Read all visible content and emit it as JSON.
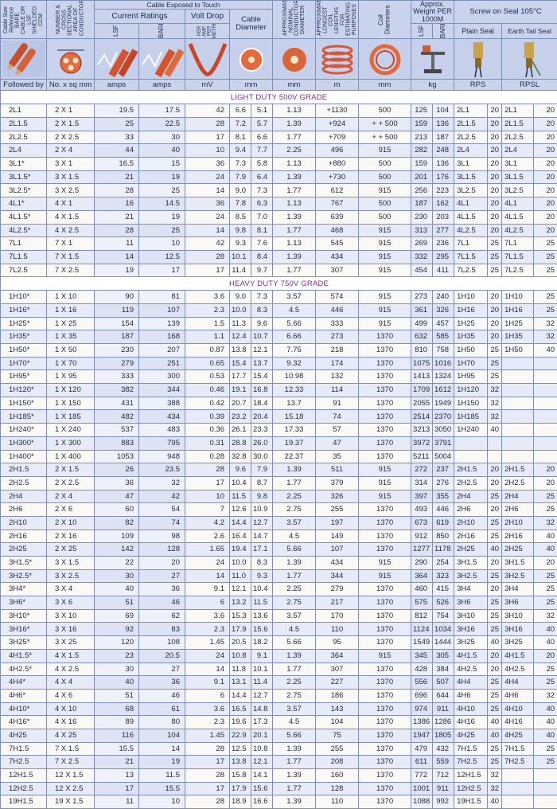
{
  "header": {
    "col1_vertical": "Cable Size Reference BARE CABLE OR LSF SHIELDED CCM",
    "col2_vertical": "NUMBER & CROSS SECTIONAL AREA OF CONDUCTORS",
    "group_exposed": "Cable Exposed to Touch",
    "group_current": "Current Ratings",
    "group_voltdrop": "Volt Drop",
    "voltdrop_vertical": "PER AMP PER METRE",
    "group_diameter": "Cable Diameter",
    "col_nominal_vertical": "APPROXIMATE NOMINAL CONDUCTOR DIAMETER",
    "col_longest_vertical": "APPROXIMATE LONGEST COIL LENGTHS FOR ESTIMATING PURPOSES",
    "col_coil_vertical": "Coil Diameters",
    "group_weight": "Approx. Weight PER 1000M",
    "group_seal": "Screw on Seal 105°C",
    "lsf": "LSF",
    "bare": "BARE",
    "plain_seal": "Plain Seal",
    "earth_tail_seal": "Earth Tail Seal"
  },
  "units": {
    "followed_by": "Followed by",
    "size": "No. x sq mm",
    "amps_lsf": "amps",
    "amps_bare": "amps",
    "volt": "mV",
    "dia": "mm",
    "nominal": "mm",
    "length": "m",
    "coil": "mm",
    "weight": "kg",
    "plain": "RPS",
    "earth": "RPSL"
  },
  "sections": {
    "light": "LIGHT DUTY 500V GRADE",
    "heavy": "HEAVY DUTY 750V GRADE"
  },
  "light_rows": [
    [
      "2L1",
      "2 X 1",
      "19.5",
      "17.5",
      "42",
      "6.6",
      "5.1",
      "1.13",
      "+1130",
      "500",
      "125",
      "104",
      "2L1",
      "20",
      "2L1",
      "20"
    ],
    [
      "2L1.5",
      "2 X 1.5",
      "25",
      "22.5",
      "28",
      "7.2",
      "5.7",
      "1.39",
      "+924",
      "+ + 500",
      "159",
      "136",
      "2L1.5",
      "20",
      "2L1.5",
      "20"
    ],
    [
      "2L2.5",
      "2 X 2.5",
      "33",
      "30",
      "17",
      "8.1",
      "6.6",
      "1.77",
      "+709",
      "+ + 500",
      "213",
      "187",
      "2L2.5",
      "20",
      "2L2.5",
      "20"
    ],
    [
      "2L4",
      "2 X 4",
      "44",
      "40",
      "10",
      "9.4",
      "7.7",
      "2.25",
      "496",
      "915",
      "282",
      "248",
      "2L4",
      "20",
      "2L4",
      "20"
    ],
    [
      "3L1*",
      "3 X 1",
      "16.5",
      "15",
      "36",
      "7.3",
      "5.8",
      "1.13",
      "+880",
      "500",
      "159",
      "136",
      "3L1",
      "20",
      "3L1",
      "20"
    ],
    [
      "3L1.5*",
      "3 X 1.5",
      "21",
      "19",
      "24",
      "7.9",
      "6.4",
      "1.39",
      "+730",
      "500",
      "201",
      "176",
      "3L1.5",
      "20",
      "3L1.5",
      "20"
    ],
    [
      "3L2.5*",
      "3 X 2.5",
      "28",
      "25",
      "14",
      "9.0",
      "7.3",
      "1.77",
      "612",
      "915",
      "256",
      "223",
      "3L2.5",
      "20",
      "3L2.5",
      "20"
    ],
    [
      "4L1*",
      "4 X 1",
      "16",
      "14.5",
      "36",
      "7.8",
      "6.3",
      "1.13",
      "767",
      "500",
      "187",
      "162",
      "4L1",
      "20",
      "4L1",
      "20"
    ],
    [
      "4L1.5*",
      "4 X 1.5",
      "21",
      "19",
      "24",
      "8.5",
      "7.0",
      "1.39",
      "639",
      "500",
      "230",
      "203",
      "4L1.5",
      "20",
      "4L1.5",
      "20"
    ],
    [
      "4L2.5*",
      "4 X 2.5",
      "28",
      "25",
      "14",
      "9.8",
      "8.1",
      "1.77",
      "468",
      "915",
      "313",
      "277",
      "4L2.5",
      "20",
      "4L2.5",
      "20"
    ],
    [
      "7L1",
      "7 X 1",
      "11",
      "10",
      "42",
      "9.3",
      "7.6",
      "1.13",
      "545",
      "915",
      "269",
      "236",
      "7L1",
      "25",
      "7L1",
      "25"
    ],
    [
      "7L1.5",
      "7 X 1.5",
      "14",
      "12.5",
      "28",
      "10.1",
      "8.4",
      "1.39",
      "434",
      "915",
      "332",
      "295",
      "7L1.5",
      "25",
      "7L1.5",
      "25"
    ],
    [
      "7L2.5",
      "7 X 2.5",
      "19",
      "17",
      "17",
      "11.4",
      "9.7",
      "1.77",
      "307",
      "915",
      "454",
      "411",
      "7L2.5",
      "25",
      "7L2.5",
      "25"
    ]
  ],
  "heavy_rows": [
    [
      "1H10*",
      "1 X 10",
      "90",
      "81",
      "3.6",
      "9.0",
      "7.3",
      "3.57",
      "574",
      "915",
      "273",
      "240",
      "1H10",
      "20",
      "1H10",
      "25"
    ],
    [
      "1H16*",
      "1 X 16",
      "119",
      "107",
      "2.3",
      "10.0",
      "8.3",
      "4.5",
      "446",
      "915",
      "361",
      "326",
      "1H16",
      "20",
      "1H16",
      "25"
    ],
    [
      "1H25*",
      "1 X 25",
      "154",
      "139",
      "1.5",
      "11.3",
      "9.6",
      "5.66",
      "333",
      "915",
      "499",
      "457",
      "1H25",
      "20",
      "1H25",
      "32"
    ],
    [
      "1H35*",
      "1 X 35",
      "187",
      "168",
      "1.1",
      "12.4",
      "10.7",
      "6.66",
      "273",
      "1370",
      "632",
      "585",
      "1H35",
      "20",
      "1H35",
      "32"
    ],
    [
      "1H50*",
      "1 X 50",
      "230",
      "207",
      "0.87",
      "13.8",
      "12.1",
      "7.75",
      "218",
      "1370",
      "810",
      "758",
      "1H50",
      "25",
      "1H50",
      "40"
    ],
    [
      "1H70*",
      "1 X 70",
      "279",
      "251",
      "0.65",
      "15.4",
      "13.7",
      "9.32",
      "174",
      "1370",
      "1075",
      "1016",
      "1H70",
      "25",
      "",
      ""
    ],
    [
      "1H95*",
      "1 X 95",
      "333",
      "300",
      "0.53",
      "17.7",
      "15.4",
      "10.98",
      "132",
      "1370",
      "1413",
      "1324",
      "1H95",
      "25",
      "",
      ""
    ],
    [
      "1H120*",
      "1 X 120",
      "382",
      "344",
      "0.46",
      "19.1",
      "16.8",
      "12.33",
      "114",
      "1370",
      "1709",
      "1612",
      "1H120",
      "32",
      "",
      ""
    ],
    [
      "1H150*",
      "1 X 150",
      "431",
      "388",
      "0.42",
      "20.7",
      "18.4",
      "13.7",
      "91",
      "1370",
      "2055",
      "1949",
      "1H150",
      "32",
      "",
      ""
    ],
    [
      "1H185*",
      "1 X 185",
      "482",
      "434",
      "0.39",
      "23.2",
      "20.4",
      "15.18",
      "74",
      "1370",
      "2514",
      "2370",
      "1H185",
      "32",
      "",
      ""
    ],
    [
      "1H240*",
      "1 X 240",
      "537",
      "483",
      "0.36",
      "26.1",
      "23.3",
      "17.33",
      "57",
      "1370",
      "3213",
      "3050",
      "1H240",
      "40",
      "",
      ""
    ],
    [
      "1H300*",
      "1 X 300",
      "883",
      "795",
      "0.31",
      "28.8",
      "26.0",
      "19.37",
      "47",
      "1370",
      "3972",
      "3791",
      "",
      "",
      "",
      ""
    ],
    [
      "1H400*",
      "1 X 400",
      "1053",
      "948",
      "0.28",
      "32.8",
      "30.0",
      "22.37",
      "35",
      "1370",
      "5211",
      "5004",
      "",
      "",
      "",
      ""
    ],
    [
      "2H1.5",
      "2 X 1.5",
      "26",
      "23.5",
      "28",
      "9.6",
      "7.9",
      "1.39",
      "511",
      "915",
      "272",
      "237",
      "2H1.5",
      "20",
      "2H1.5",
      "20"
    ],
    [
      "2H2.5",
      "2 X 2.5",
      "36",
      "32",
      "17",
      "10.4",
      "8.7",
      "1.77",
      "379",
      "915",
      "314",
      "276",
      "2H2.5",
      "20",
      "2H2.5",
      "20"
    ],
    [
      "2H4",
      "2 X 4",
      "47",
      "42",
      "10",
      "11.5",
      "9.8",
      "2.25",
      "326",
      "915",
      "397",
      "355",
      "2H4",
      "25",
      "2H4",
      "25"
    ],
    [
      "2H6",
      "2 X 6",
      "60",
      "54",
      "7",
      "12.6",
      "10.9",
      "2.75",
      "255",
      "1370",
      "493",
      "446",
      "2H6",
      "20",
      "2H6",
      "25"
    ],
    [
      "2H10",
      "2 X 10",
      "82",
      "74",
      "4.2",
      "14.4",
      "12.7",
      "3.57",
      "197",
      "1370",
      "673",
      "619",
      "2H10",
      "25",
      "2H10",
      "32"
    ],
    [
      "2H16",
      "2 X 16",
      "109",
      "98",
      "2.6",
      "16.4",
      "14.7",
      "4.5",
      "149",
      "1370",
      "912",
      "850",
      "2H16",
      "25",
      "2H16",
      "40"
    ],
    [
      "2H25",
      "2 X 25",
      "142",
      "128",
      "1.65",
      "19.4",
      "17.1",
      "5.66",
      "107",
      "1370",
      "1277",
      "1178",
      "2H25",
      "40",
      "2H25",
      "40"
    ],
    [
      "3H1.5*",
      "3 X 1.5",
      "22",
      "20",
      "24",
      "10.0",
      "8.3",
      "1.39",
      "434",
      "915",
      "290",
      "254",
      "3H1.5",
      "20",
      "3H1.5",
      "20"
    ],
    [
      "3H2.5*",
      "3 X 2.5",
      "30",
      "27",
      "14",
      "11.0",
      "9.3",
      "1.77",
      "344",
      "915",
      "364",
      "323",
      "3H2.5",
      "25",
      "3H2.5",
      "25"
    ],
    [
      "3H4*",
      "3 X 4",
      "40",
      "36",
      "9.1",
      "12.1",
      "10.4",
      "2.25",
      "279",
      "1370",
      "460",
      "415",
      "3H4",
      "20",
      "3H4",
      "25"
    ],
    [
      "3H6*",
      "3 X 6",
      "51",
      "46",
      "6",
      "13.2",
      "11.5",
      "2.75",
      "217",
      "1370",
      "575",
      "526",
      "3H6",
      "25",
      "3H6",
      "25"
    ],
    [
      "3H10*",
      "3 X 10",
      "69",
      "62",
      "3.6",
      "15.3",
      "13.6",
      "3.57",
      "170",
      "1370",
      "812",
      "754",
      "3H10",
      "25",
      "3H10",
      "32"
    ],
    [
      "3H16*",
      "3 X 16",
      "92",
      "83",
      "2.3",
      "17.9",
      "15.6",
      "4.5",
      "110",
      "1370",
      "1124",
      "1034",
      "3H16",
      "25",
      "3H16",
      "40"
    ],
    [
      "3H25*",
      "3 X 25",
      "120",
      "108",
      "1.45",
      "20.5",
      "18.2",
      "5.66",
      "95",
      "1370",
      "1549",
      "1444",
      "3H25",
      "40",
      "3H25",
      "40"
    ],
    [
      "4H1.5*",
      "4 X 1.5",
      "23",
      "20.5",
      "24",
      "10.8",
      "9.1",
      "1.39",
      "364",
      "915",
      "345",
      "305",
      "4H1.5",
      "20",
      "4H1.5",
      "20"
    ],
    [
      "4H2.5*",
      "4 X 2.5",
      "30",
      "27",
      "14",
      "11.8",
      "10.1",
      "1.77",
      "307",
      "1370",
      "428",
      "384",
      "4H2.5",
      "20",
      "4H2.5",
      "25"
    ],
    [
      "4H4*",
      "4 X 4",
      "40",
      "36",
      "9.1",
      "13.1",
      "11.4",
      "2.25",
      "227",
      "1370",
      "556",
      "507",
      "4H4",
      "25",
      "4H4",
      "25"
    ],
    [
      "4H6*",
      "4 X 6",
      "51",
      "46",
      "6",
      "14.4",
      "12.7",
      "2.75",
      "186",
      "1370",
      "696",
      "644",
      "4H6",
      "25",
      "4H6",
      "32"
    ],
    [
      "4H10*",
      "4 X 10",
      "68",
      "61",
      "3.6",
      "16.5",
      "14.8",
      "3.57",
      "143",
      "1370",
      "974",
      "911",
      "4H10",
      "25",
      "4H10",
      "40"
    ],
    [
      "4H16*",
      "4 X 16",
      "89",
      "80",
      "2.3",
      "19.6",
      "17.3",
      "4.5",
      "104",
      "1370",
      "1386",
      "1286",
      "4H16",
      "40",
      "4H16",
      "40"
    ],
    [
      "4H25",
      "4 X 25",
      "116",
      "104",
      "1.45",
      "22.9",
      "20.1",
      "5.66",
      "75",
      "1370",
      "1947",
      "1805",
      "4H25",
      "40",
      "4H25",
      "40"
    ],
    [
      "7H1.5",
      "7 X 1.5",
      "15.5",
      "14",
      "28",
      "12.5",
      "10.8",
      "1.39",
      "255",
      "1370",
      "479",
      "432",
      "7H1.5",
      "25",
      "7H1.5",
      "25"
    ],
    [
      "7H2.5",
      "7 X 2.5",
      "21",
      "19",
      "17",
      "13.8",
      "12.1",
      "1.77",
      "208",
      "1370",
      "611",
      "559",
      "7H2.5",
      "25",
      "7H2.5",
      "25"
    ],
    [
      "12H1.5",
      "12 X 1.5",
      "13",
      "11.5",
      "28",
      "15.8",
      "14.1",
      "1.39",
      "160",
      "1370",
      "772",
      "712",
      "12H1.5",
      "32",
      "",
      ""
    ],
    [
      "12H2.5",
      "12 X 2.5",
      "17",
      "15.5",
      "17",
      "17.9",
      "15.6",
      "1.77",
      "128",
      "1370",
      "1001",
      "911",
      "12H2.5",
      "32",
      "",
      ""
    ],
    [
      "19H1.5",
      "19 X 1.5",
      "11",
      "10",
      "28",
      "18.9",
      "16.6",
      "1.39",
      "110",
      "1370",
      "1088",
      "992",
      "19H1.5",
      "40",
      "",
      ""
    ]
  ]
}
